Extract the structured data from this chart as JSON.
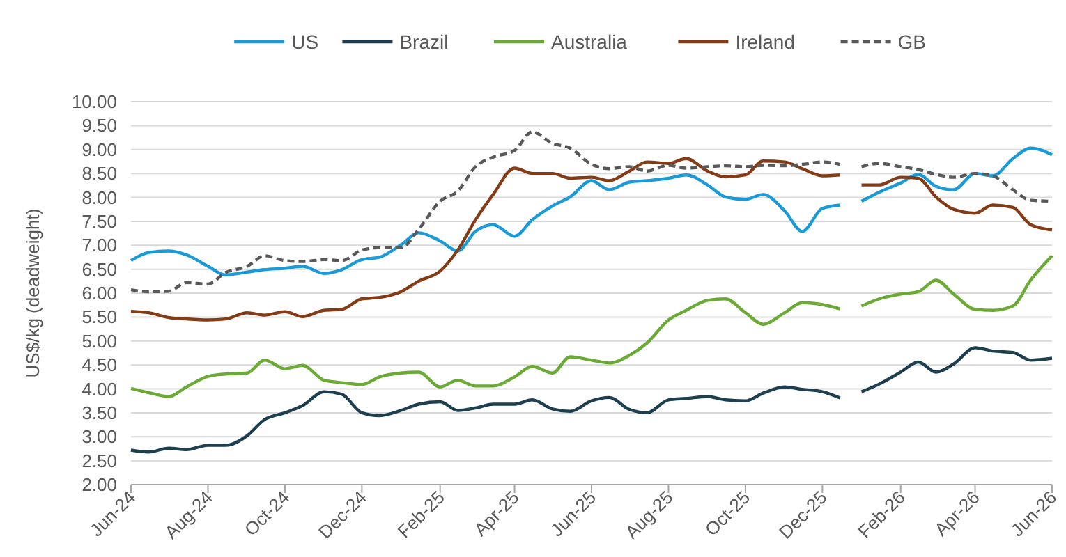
{
  "chart_data": {
    "type": "line",
    "ylabel": "US$/kg (deadweight)",
    "x": [
      "2024-06-01",
      "2024-06-15",
      "2024-07-01",
      "2024-07-15",
      "2024-08-01",
      "2024-08-15",
      "2024-09-01",
      "2024-09-15",
      "2024-10-01",
      "2024-10-15",
      "2024-11-01",
      "2024-11-15",
      "2024-12-01",
      "2024-12-15",
      "2025-01-01",
      "2025-01-15",
      "2025-02-01",
      "2025-02-15",
      "2025-03-01",
      "2025-03-15",
      "2025-04-01",
      "2025-04-15",
      "2025-05-01",
      "2025-05-15",
      "2025-06-01",
      "2025-06-15",
      "2025-07-01",
      "2025-07-15",
      "2025-08-01",
      "2025-08-15",
      "2025-09-01",
      "2025-09-15",
      "2025-10-01",
      "2025-10-15",
      "2025-11-01",
      "2025-11-15",
      "2025-12-01",
      "2025-12-15",
      "2025-12-24",
      "2026-01-01",
      "2026-01-15",
      "2026-02-01",
      "2026-02-15",
      "2026-03-01",
      "2026-03-15",
      "2026-04-01",
      "2026-04-15",
      "2026-05-01",
      "2026-05-15",
      "2026-06-01"
    ],
    "series": [
      {
        "name": "US",
        "color": "#1a9ad6",
        "line_style": "solid",
        "values": [
          6.68,
          6.85,
          6.88,
          6.8,
          6.56,
          6.38,
          6.44,
          6.49,
          6.52,
          6.56,
          6.41,
          6.49,
          6.7,
          6.75,
          7.01,
          7.26,
          7.09,
          6.88,
          7.29,
          7.43,
          7.19,
          7.53,
          7.82,
          8.01,
          8.35,
          8.16,
          8.32,
          8.35,
          8.4,
          8.47,
          8.26,
          8.01,
          7.96,
          8.06,
          7.72,
          7.29,
          7.77,
          7.84,
          null,
          7.92,
          8.11,
          8.3,
          8.48,
          8.23,
          8.16,
          8.5,
          8.45,
          8.81,
          9.03,
          8.89
        ]
      },
      {
        "name": "Brazil",
        "color": "#1e3f4f",
        "line_style": "solid",
        "values": [
          2.72,
          2.68,
          2.76,
          2.73,
          2.82,
          2.82,
          3.02,
          3.36,
          3.5,
          3.65,
          3.94,
          3.89,
          3.5,
          3.44,
          3.55,
          3.68,
          3.73,
          3.55,
          3.6,
          3.68,
          3.68,
          3.77,
          3.58,
          3.53,
          3.75,
          3.82,
          3.57,
          3.5,
          3.77,
          3.8,
          3.84,
          3.77,
          3.75,
          3.91,
          4.04,
          3.99,
          3.94,
          3.81,
          null,
          3.94,
          4.1,
          4.35,
          4.56,
          4.35,
          4.52,
          4.86,
          4.79,
          4.76,
          4.6,
          4.64
        ]
      },
      {
        "name": "Australia",
        "color": "#6aaa35",
        "line_style": "solid",
        "values": [
          4.01,
          3.92,
          3.84,
          4.04,
          4.26,
          4.31,
          4.33,
          4.6,
          4.42,
          4.49,
          4.18,
          4.13,
          4.09,
          4.25,
          4.33,
          4.35,
          4.04,
          4.18,
          4.06,
          4.06,
          4.25,
          4.47,
          4.33,
          4.67,
          4.6,
          4.54,
          4.7,
          4.96,
          5.44,
          5.64,
          5.85,
          5.88,
          5.59,
          5.35,
          5.59,
          5.8,
          5.76,
          5.67,
          null,
          5.73,
          5.88,
          5.98,
          6.03,
          6.27,
          5.98,
          5.66,
          5.64,
          5.73,
          6.27,
          6.78
        ]
      },
      {
        "name": "Ireland",
        "color": "#843c17",
        "line_style": "solid",
        "values": [
          5.62,
          5.59,
          5.49,
          5.46,
          5.44,
          5.46,
          5.59,
          5.54,
          5.61,
          5.51,
          5.64,
          5.66,
          5.88,
          5.91,
          6.03,
          6.25,
          6.46,
          6.9,
          7.53,
          8.06,
          8.61,
          8.5,
          8.5,
          8.4,
          8.42,
          8.35,
          8.55,
          8.74,
          8.71,
          8.81,
          8.55,
          8.43,
          8.47,
          8.76,
          8.74,
          8.6,
          8.45,
          8.47,
          null,
          8.26,
          8.26,
          8.42,
          8.4,
          8.01,
          7.75,
          7.67,
          7.84,
          7.79,
          7.43,
          7.32
        ]
      },
      {
        "name": "GB",
        "color": "#595959",
        "line_style": "dashed",
        "values": [
          6.07,
          6.03,
          6.04,
          6.22,
          6.19,
          6.43,
          6.56,
          6.78,
          6.68,
          6.66,
          6.7,
          6.68,
          6.9,
          6.95,
          6.95,
          7.33,
          7.92,
          8.13,
          8.64,
          8.84,
          8.98,
          9.37,
          9.13,
          9.03,
          8.69,
          8.6,
          8.64,
          8.55,
          8.67,
          8.61,
          8.64,
          8.66,
          8.64,
          8.67,
          8.66,
          8.69,
          8.74,
          8.69,
          null,
          8.64,
          8.71,
          8.64,
          8.58,
          8.48,
          8.42,
          8.5,
          8.45,
          8.16,
          7.94,
          7.92
        ]
      }
    ],
    "xlim": [
      "2024-06-01",
      "2026-06-01"
    ],
    "xticks": [
      {
        "value": "2024-06-01",
        "label": "Jun-24"
      },
      {
        "value": "2024-08-01",
        "label": "Aug-24"
      },
      {
        "value": "2024-10-01",
        "label": "Oct-24"
      },
      {
        "value": "2024-12-01",
        "label": "Dec-24"
      },
      {
        "value": "2025-02-01",
        "label": "Feb-25"
      },
      {
        "value": "2025-04-01",
        "label": "Apr-25"
      },
      {
        "value": "2025-06-01",
        "label": "Jun-25"
      },
      {
        "value": "2025-08-01",
        "label": "Aug-25"
      },
      {
        "value": "2025-10-01",
        "label": "Oct-25"
      },
      {
        "value": "2025-12-01",
        "label": "Dec-25"
      },
      {
        "value": "2026-02-01",
        "label": "Feb-26"
      },
      {
        "value": "2026-04-01",
        "label": "Apr-26"
      },
      {
        "value": "2026-06-01",
        "label": "Jun-26"
      }
    ],
    "ylim": [
      2,
      10
    ],
    "yticks": [
      {
        "value": 2,
        "label": "2.00"
      },
      {
        "value": 2.5,
        "label": "2.50"
      },
      {
        "value": 3,
        "label": "3.00"
      },
      {
        "value": 3.5,
        "label": "3.50"
      },
      {
        "value": 4,
        "label": "4.00"
      },
      {
        "value": 4.5,
        "label": "4.50"
      },
      {
        "value": 5,
        "label": "5.00"
      },
      {
        "value": 5.5,
        "label": "5.50"
      },
      {
        "value": 6,
        "label": "6.00"
      },
      {
        "value": 6.5,
        "label": "6.50"
      },
      {
        "value": 7,
        "label": "7.00"
      },
      {
        "value": 7.5,
        "label": "7.50"
      },
      {
        "value": 8,
        "label": "8.00"
      },
      {
        "value": 8.5,
        "label": "8.50"
      },
      {
        "value": 9,
        "label": "9.00"
      },
      {
        "value": 9.5,
        "label": "9.50"
      },
      {
        "value": 10,
        "label": "10.00"
      }
    ],
    "grid": "y",
    "legend": "top",
    "marker": "none"
  }
}
